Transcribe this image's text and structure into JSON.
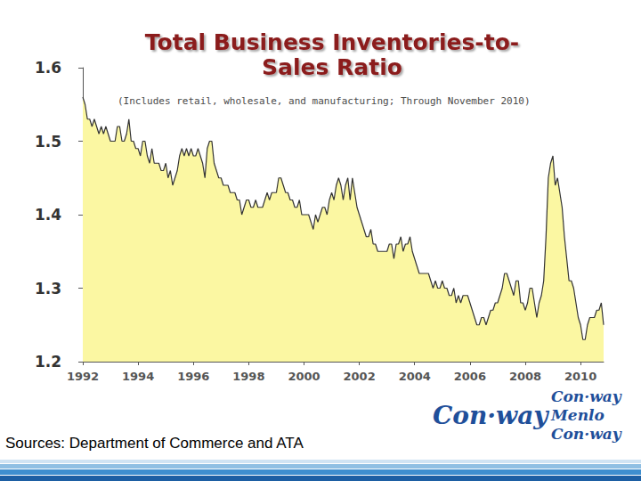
{
  "chart_data": {
    "type": "area",
    "title": "Total Business Inventories-to-Sales Ratio",
    "subtitle": "(Includes retail, wholesale, and manufacturing; Through November 2010)",
    "source": "Sources: Department of Commerce and ATA",
    "logos": [
      "Con·way",
      "Con·way",
      "Menlo",
      "Con·way"
    ],
    "color": "#fbf7a2",
    "grid": false,
    "ylim": [
      1.2,
      1.6
    ],
    "yticks": [
      1.2,
      1.3,
      1.4,
      1.5,
      1.6
    ],
    "categories": [
      "1992",
      null,
      null,
      null,
      null,
      null,
      null,
      null,
      null,
      null,
      null,
      null,
      null,
      null,
      null,
      null,
      null,
      null,
      null,
      null,
      null,
      null,
      null,
      null,
      "1994",
      null,
      null,
      null,
      null,
      null,
      null,
      null,
      null,
      null,
      null,
      null,
      null,
      null,
      null,
      null,
      null,
      null,
      null,
      null,
      null,
      null,
      null,
      null,
      "1996",
      null,
      null,
      null,
      null,
      null,
      null,
      null,
      null,
      null,
      null,
      null,
      null,
      null,
      null,
      null,
      null,
      null,
      null,
      null,
      null,
      null,
      null,
      null,
      "1998",
      null,
      null,
      null,
      null,
      null,
      null,
      null,
      null,
      null,
      null,
      null,
      null,
      null,
      null,
      null,
      null,
      null,
      null,
      null,
      null,
      null,
      null,
      null,
      "2000",
      null,
      null,
      null,
      null,
      null,
      null,
      null,
      null,
      null,
      null,
      null,
      null,
      null,
      null,
      null,
      null,
      null,
      null,
      null,
      null,
      null,
      null,
      null,
      "2002",
      null,
      null,
      null,
      null,
      null,
      null,
      null,
      null,
      null,
      null,
      null,
      null,
      null,
      null,
      null,
      null,
      null,
      null,
      null,
      null,
      null,
      null,
      null,
      "2004",
      null,
      null,
      null,
      null,
      null,
      null,
      null,
      null,
      null,
      null,
      null,
      null,
      null,
      null,
      null,
      null,
      null,
      null,
      null,
      null,
      null,
      null,
      null,
      "2006",
      null,
      null,
      null,
      null,
      null,
      null,
      null,
      null,
      null,
      null,
      null,
      null,
      null,
      null,
      null,
      null,
      null,
      null,
      null,
      null,
      null,
      null,
      null,
      "2008",
      null,
      null,
      null,
      null,
      null,
      null,
      null,
      null,
      null,
      null,
      null,
      null,
      null,
      null,
      null,
      null,
      null,
      null,
      null,
      null,
      null,
      null,
      null,
      "2010",
      null,
      null,
      null,
      null,
      null,
      null,
      null,
      null,
      null,
      null
    ],
    "values": [
      1.56,
      1.55,
      1.53,
      1.53,
      1.52,
      1.53,
      1.52,
      1.51,
      1.52,
      1.51,
      1.52,
      1.51,
      1.5,
      1.5,
      1.5,
      1.52,
      1.52,
      1.5,
      1.5,
      1.51,
      1.53,
      1.5,
      1.5,
      1.49,
      1.49,
      1.48,
      1.5,
      1.5,
      1.48,
      1.47,
      1.49,
      1.47,
      1.47,
      1.47,
      1.46,
      1.46,
      1.47,
      1.45,
      1.46,
      1.44,
      1.45,
      1.46,
      1.48,
      1.49,
      1.48,
      1.49,
      1.48,
      1.49,
      1.48,
      1.48,
      1.49,
      1.48,
      1.47,
      1.45,
      1.49,
      1.5,
      1.5,
      1.47,
      1.46,
      1.45,
      1.45,
      1.44,
      1.44,
      1.44,
      1.43,
      1.43,
      1.43,
      1.42,
      1.42,
      1.4,
      1.41,
      1.42,
      1.42,
      1.41,
      1.41,
      1.42,
      1.41,
      1.41,
      1.41,
      1.42,
      1.43,
      1.42,
      1.43,
      1.43,
      1.43,
      1.45,
      1.45,
      1.44,
      1.43,
      1.43,
      1.42,
      1.42,
      1.41,
      1.41,
      1.42,
      1.4,
      1.4,
      1.4,
      1.4,
      1.39,
      1.38,
      1.4,
      1.39,
      1.4,
      1.41,
      1.41,
      1.4,
      1.42,
      1.43,
      1.42,
      1.44,
      1.45,
      1.44,
      1.42,
      1.44,
      1.45,
      1.42,
      1.45,
      1.43,
      1.41,
      1.4,
      1.39,
      1.38,
      1.37,
      1.37,
      1.38,
      1.36,
      1.36,
      1.35,
      1.35,
      1.35,
      1.35,
      1.35,
      1.36,
      1.36,
      1.34,
      1.36,
      1.36,
      1.37,
      1.35,
      1.36,
      1.36,
      1.37,
      1.35,
      1.34,
      1.33,
      1.32,
      1.32,
      1.32,
      1.32,
      1.32,
      1.31,
      1.3,
      1.31,
      1.3,
      1.3,
      1.31,
      1.3,
      1.3,
      1.29,
      1.29,
      1.3,
      1.28,
      1.29,
      1.28,
      1.29,
      1.29,
      1.29,
      1.28,
      1.27,
      1.26,
      1.25,
      1.25,
      1.26,
      1.26,
      1.25,
      1.26,
      1.27,
      1.27,
      1.28,
      1.28,
      1.29,
      1.3,
      1.32,
      1.32,
      1.31,
      1.3,
      1.29,
      1.31,
      1.31,
      1.28,
      1.28,
      1.27,
      1.28,
      1.3,
      1.3,
      1.28,
      1.26,
      1.28,
      1.29,
      1.31,
      1.37,
      1.45,
      1.47,
      1.48,
      1.44,
      1.45,
      1.43,
      1.41,
      1.37,
      1.34,
      1.31,
      1.31,
      1.3,
      1.28,
      1.26,
      1.25,
      1.23,
      1.23,
      1.25,
      1.26,
      1.26,
      1.26,
      1.27,
      1.27,
      1.28,
      1.25
    ]
  }
}
